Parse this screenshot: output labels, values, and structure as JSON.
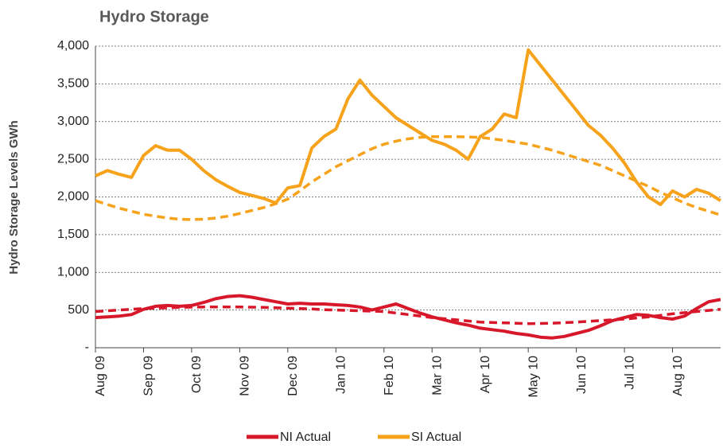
{
  "chart_data": {
    "type": "line",
    "title": "Hydro Storage",
    "y_label": "Hydro Storage Levels GWh",
    "xticks": [
      "Aug 09",
      "Sep 09",
      "Oct 09",
      "Nov 09",
      "Dec 09",
      "Jan 10",
      "Feb 10",
      "Mar 10",
      "Apr 10",
      "May 10",
      "Jun 10",
      "Jul 10",
      "Aug 10"
    ],
    "ylim": [
      0,
      4000
    ],
    "yticks": [
      {
        "value": 0,
        "label": "-"
      },
      500,
      {
        "value": 1000,
        "label": "1,000"
      },
      {
        "value": 1500,
        "label": "1,500"
      },
      {
        "value": 2000,
        "label": "2,000"
      },
      {
        "value": 2500,
        "label": "2,500"
      },
      {
        "value": 3000,
        "label": "3,000"
      },
      {
        "value": 3500,
        "label": "3,500"
      },
      {
        "value": 4000,
        "label": "4,000"
      }
    ],
    "grid": true,
    "legend": "bottom",
    "series": [
      {
        "name": "NI Actual",
        "color": "#d7182a",
        "values": [
          400,
          410,
          420,
          440,
          510,
          550,
          560,
          550,
          560,
          600,
          650,
          680,
          690,
          670,
          640,
          610,
          580,
          590,
          580,
          580,
          570,
          560,
          540,
          500,
          540,
          580,
          520,
          460,
          410,
          370,
          330,
          300,
          260,
          240,
          220,
          190,
          170,
          140,
          130,
          150,
          190,
          230,
          290,
          360,
          400,
          440,
          430,
          400,
          380,
          420,
          520,
          610,
          640
        ]
      },
      {
        "name": "SI Actual",
        "color": "#f7a21b",
        "values": [
          2280,
          2350,
          2300,
          2260,
          2550,
          2680,
          2620,
          2620,
          2500,
          2350,
          2230,
          2140,
          2060,
          2020,
          1980,
          1920,
          2120,
          2150,
          2650,
          2800,
          2900,
          3300,
          3550,
          3350,
          3200,
          3050,
          2950,
          2850,
          2750,
          2700,
          2620,
          2500,
          2800,
          2900,
          3100,
          3050,
          3950,
          3750,
          3550,
          3350,
          3150,
          2950,
          2820,
          2650,
          2450,
          2200,
          2000,
          1900,
          2080,
          2000,
          2100,
          2050,
          1950
        ]
      },
      {
        "color": "#d7182a",
        "dashed": true,
        "values": [
          480,
          490,
          500,
          510,
          520,
          525,
          530,
          535,
          538,
          540,
          540,
          540,
          540,
          538,
          535,
          530,
          525,
          520,
          515,
          505,
          500,
          495,
          490,
          485,
          480,
          460,
          440,
          420,
          400,
          385,
          370,
          355,
          340,
          335,
          330,
          325,
          320,
          322,
          325,
          332,
          340,
          350,
          360,
          370,
          380,
          395,
          410,
          430,
          450,
          465,
          480,
          495,
          510
        ]
      },
      {
        "color": "#f7a21b",
        "dashed": true,
        "values": [
          1950,
          1900,
          1850,
          1810,
          1770,
          1745,
          1720,
          1705,
          1700,
          1705,
          1720,
          1745,
          1780,
          1820,
          1860,
          1910,
          1970,
          2080,
          2200,
          2300,
          2400,
          2480,
          2560,
          2640,
          2700,
          2740,
          2770,
          2790,
          2800,
          2800,
          2800,
          2795,
          2790,
          2770,
          2750,
          2725,
          2700,
          2660,
          2620,
          2570,
          2520,
          2470,
          2420,
          2350,
          2280,
          2210,
          2140,
          2060,
          1990,
          1920,
          1860,
          1810,
          1760
        ]
      }
    ]
  }
}
